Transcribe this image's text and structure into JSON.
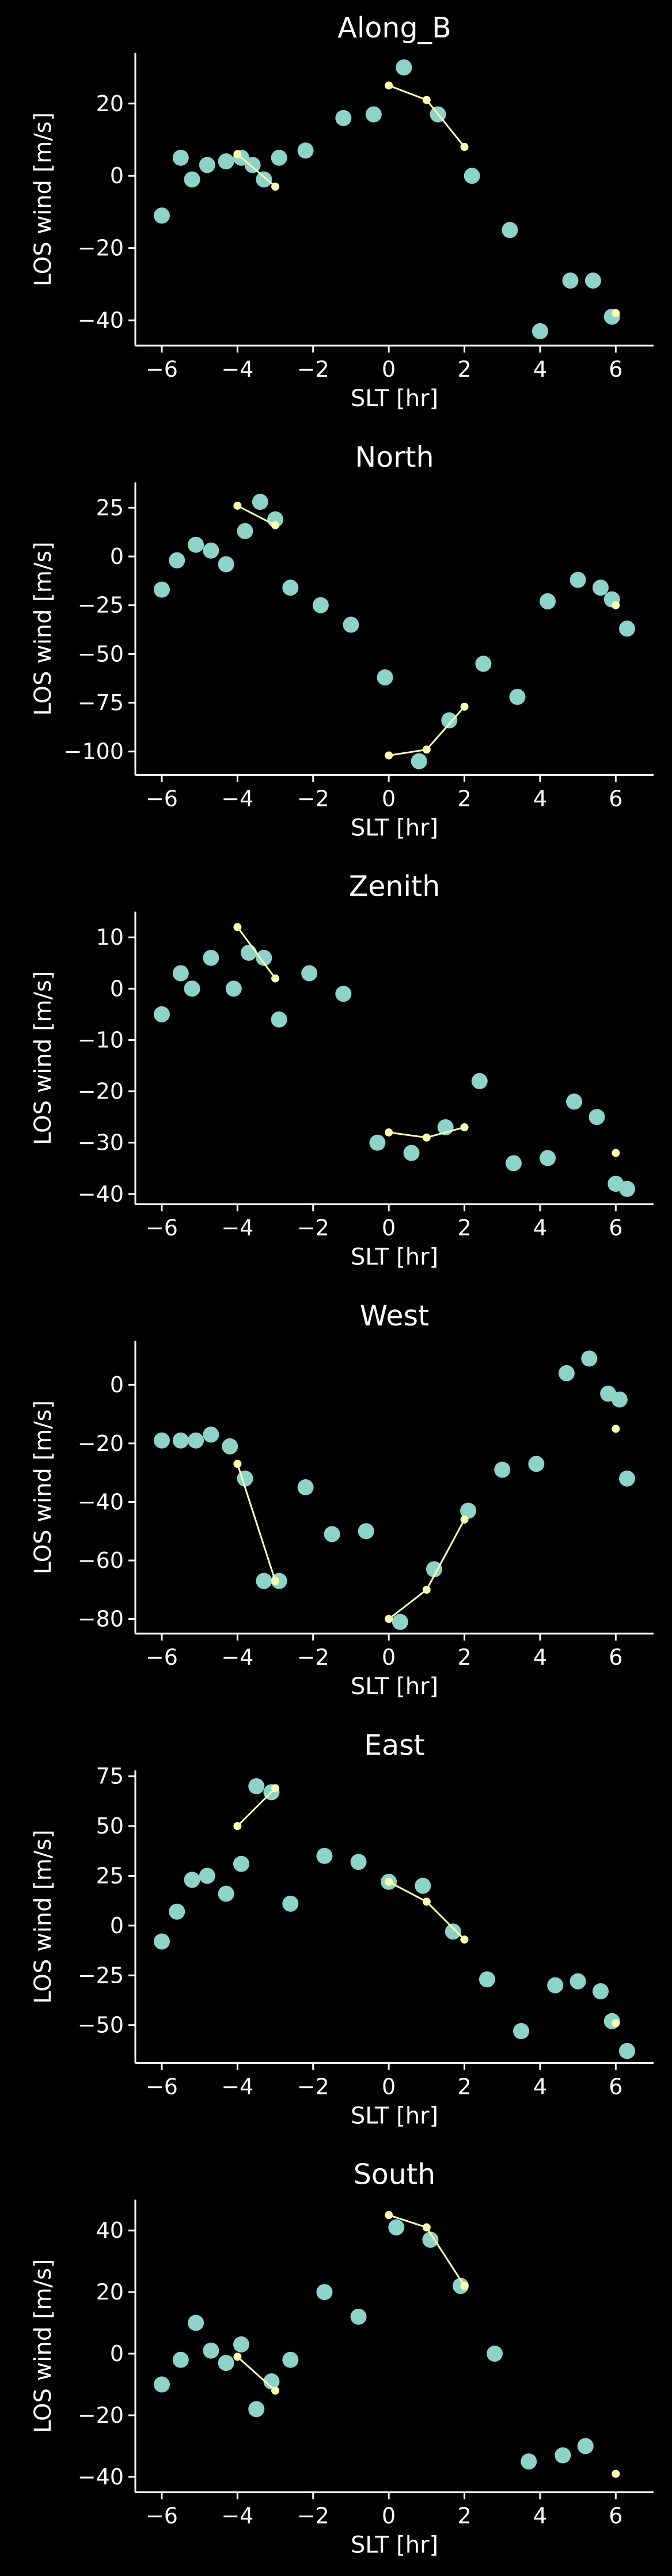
{
  "colors": {
    "background": "#000000",
    "foreground": "#ffffff",
    "obs": "#8dd3c7",
    "model": "#ffffb3"
  },
  "chart_data": [
    {
      "type": "scatter",
      "title": "Along_B",
      "xlabel": "SLT [hr]",
      "ylabel": "LOS wind [m/s]",
      "xlim": [
        -6.7,
        7.0
      ],
      "ylim": [
        -47,
        34
      ],
      "xticks": [
        -6,
        -4,
        -2,
        0,
        2,
        4,
        6
      ],
      "yticks": [
        -40,
        -20,
        0,
        20
      ],
      "series": [
        {
          "marker": "large-dot",
          "x": [
            -6.0,
            -5.5,
            -5.2,
            -4.8,
            -4.3,
            -3.9,
            -3.6,
            -3.3,
            -2.9,
            -2.2,
            -1.2,
            -0.4,
            0.4,
            1.3,
            2.2,
            3.2,
            4.0,
            4.8,
            5.4,
            5.9
          ],
          "y": [
            -11,
            5,
            -1,
            3,
            4,
            5,
            3,
            -1,
            5,
            7,
            16,
            17,
            30,
            17,
            0,
            -15,
            -43,
            -29,
            -29,
            -39
          ]
        },
        {
          "marker": "small-dot-line",
          "x": [
            -4.0,
            -3.0,
            0.0,
            1.0,
            2.0,
            6.0
          ],
          "y": [
            6,
            -3,
            25,
            21,
            8,
            -38
          ]
        }
      ]
    },
    {
      "type": "scatter",
      "title": "North",
      "xlabel": "SLT [hr]",
      "ylabel": "LOS wind [m/s]",
      "xlim": [
        -6.7,
        7.0
      ],
      "ylim": [
        -112,
        38
      ],
      "xticks": [
        -6,
        -4,
        -2,
        0,
        2,
        4,
        6
      ],
      "yticks": [
        -100,
        -75,
        -50,
        -25,
        0,
        25
      ],
      "series": [
        {
          "marker": "large-dot",
          "x": [
            -6.0,
            -5.6,
            -5.1,
            -4.7,
            -4.3,
            -3.8,
            -3.4,
            -3.0,
            -2.6,
            -1.8,
            -1.0,
            -0.1,
            0.8,
            1.6,
            2.5,
            3.4,
            4.2,
            5.0,
            5.6,
            5.9,
            6.3
          ],
          "y": [
            -17,
            -2,
            6,
            3,
            -4,
            13,
            28,
            19,
            -16,
            -25,
            -35,
            -62,
            -105,
            -84,
            -55,
            -72,
            -23,
            -12,
            -16,
            -22,
            -37
          ]
        },
        {
          "marker": "small-dot-line",
          "x": [
            -4.0,
            -3.0,
            0.0,
            1.0,
            2.0,
            6.0
          ],
          "y": [
            26,
            16,
            -102,
            -99,
            -77,
            -25
          ]
        }
      ]
    },
    {
      "type": "scatter",
      "title": "Zenith",
      "xlabel": "SLT [hr]",
      "ylabel": "LOS wind [m/s]",
      "xlim": [
        -6.7,
        7.0
      ],
      "ylim": [
        -42,
        15
      ],
      "xticks": [
        -6,
        -4,
        -2,
        0,
        2,
        4,
        6
      ],
      "yticks": [
        -40,
        -30,
        -20,
        -10,
        0,
        10
      ],
      "series": [
        {
          "marker": "large-dot",
          "x": [
            -6.0,
            -5.5,
            -5.2,
            -4.7,
            -4.1,
            -3.7,
            -3.3,
            -2.9,
            -2.1,
            -1.2,
            -0.3,
            0.6,
            1.5,
            2.4,
            3.3,
            4.2,
            4.9,
            5.5,
            6.0,
            6.3
          ],
          "y": [
            -5,
            3,
            0,
            6,
            0,
            7,
            6,
            -6,
            3,
            -1,
            -30,
            -32,
            -27,
            -18,
            -34,
            -33,
            -22,
            -25,
            -38,
            -39
          ]
        },
        {
          "marker": "small-dot-line",
          "x": [
            -4.0,
            -3.0,
            0.0,
            1.0,
            2.0,
            6.0
          ],
          "y": [
            12,
            2,
            -28,
            -29,
            -27,
            -32
          ]
        }
      ]
    },
    {
      "type": "scatter",
      "title": "West",
      "xlabel": "SLT [hr]",
      "ylabel": "LOS wind [m/s]",
      "xlim": [
        -6.7,
        7.0
      ],
      "ylim": [
        -85,
        15
      ],
      "xticks": [
        -6,
        -4,
        -2,
        0,
        2,
        4,
        6
      ],
      "yticks": [
        -80,
        -60,
        -40,
        -20,
        0
      ],
      "series": [
        {
          "marker": "large-dot",
          "x": [
            -6.0,
            -5.5,
            -5.1,
            -4.7,
            -4.2,
            -3.8,
            -3.3,
            -2.9,
            -2.2,
            -1.5,
            -0.6,
            0.3,
            1.2,
            2.1,
            3.0,
            3.9,
            4.7,
            5.3,
            5.8,
            6.1,
            6.3
          ],
          "y": [
            -19,
            -19,
            -19,
            -17,
            -21,
            -32,
            -67,
            -67,
            -35,
            -51,
            -50,
            -81,
            -63,
            -43,
            -29,
            -27,
            4,
            9,
            -3,
            -5,
            -32
          ]
        },
        {
          "marker": "small-dot-line",
          "x": [
            -4.0,
            -3.0,
            0.0,
            1.0,
            2.0,
            6.0
          ],
          "y": [
            -27,
            -67,
            -80,
            -70,
            -46,
            -15
          ]
        }
      ]
    },
    {
      "type": "scatter",
      "title": "East",
      "xlabel": "SLT [hr]",
      "ylabel": "LOS wind [m/s]",
      "xlim": [
        -6.7,
        7.0
      ],
      "ylim": [
        -69,
        78
      ],
      "xticks": [
        -6,
        -4,
        -2,
        0,
        2,
        4,
        6
      ],
      "yticks": [
        -50,
        -25,
        0,
        25,
        50,
        75
      ],
      "series": [
        {
          "marker": "large-dot",
          "x": [
            -6.0,
            -5.6,
            -5.2,
            -4.8,
            -4.3,
            -3.9,
            -3.5,
            -3.1,
            -2.6,
            -1.7,
            -0.8,
            0.0,
            0.9,
            1.7,
            2.6,
            3.5,
            4.4,
            5.0,
            5.6,
            5.9,
            6.3
          ],
          "y": [
            -8,
            7,
            23,
            25,
            16,
            31,
            70,
            67,
            11,
            35,
            32,
            22,
            20,
            -3,
            -27,
            -53,
            -30,
            -28,
            -33,
            -48,
            -63
          ]
        },
        {
          "marker": "small-dot-line",
          "x": [
            -4.0,
            -3.0,
            0.0,
            1.0,
            2.0,
            6.0
          ],
          "y": [
            50,
            69,
            22,
            12,
            -7,
            -49
          ]
        }
      ]
    },
    {
      "type": "scatter",
      "title": "South",
      "xlabel": "SLT [hr]",
      "ylabel": "LOS wind [m/s]",
      "xlim": [
        -6.7,
        7.0
      ],
      "ylim": [
        -45,
        50
      ],
      "xticks": [
        -6,
        -4,
        -2,
        0,
        2,
        4,
        6
      ],
      "yticks": [
        -40,
        -20,
        0,
        20,
        40
      ],
      "series": [
        {
          "marker": "large-dot",
          "x": [
            -6.0,
            -5.5,
            -5.1,
            -4.7,
            -4.3,
            -3.9,
            -3.5,
            -3.1,
            -2.6,
            -1.7,
            -0.8,
            0.2,
            1.1,
            1.9,
            2.8,
            3.7,
            4.6,
            5.2
          ],
          "y": [
            -10,
            -2,
            10,
            1,
            -3,
            3,
            -18,
            -9,
            -2,
            20,
            12,
            41,
            37,
            22,
            0,
            -35,
            -33,
            -30
          ]
        },
        {
          "marker": "small-dot-line",
          "x": [
            -4.0,
            -3.0,
            0.0,
            1.0,
            2.0,
            6.0
          ],
          "y": [
            -1,
            -12,
            45,
            41,
            22,
            -39
          ]
        }
      ]
    }
  ]
}
